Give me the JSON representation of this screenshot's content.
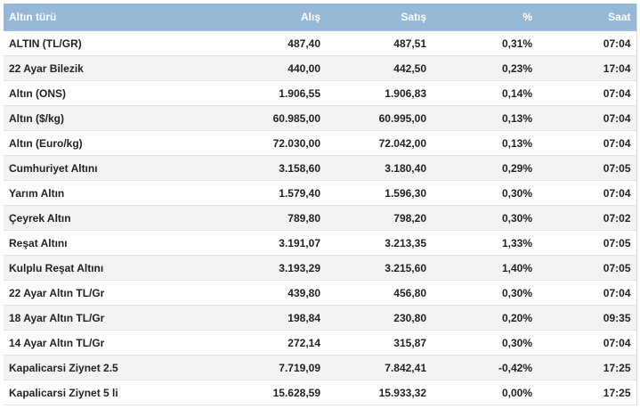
{
  "table": {
    "headers": [
      "Altın türü",
      "Alış",
      "Satış",
      "%",
      "Saat"
    ],
    "rows": [
      [
        "ALTIN (TL/GR)",
        "487,40",
        "487,51",
        "0,31%",
        "07:04"
      ],
      [
        "22 Ayar Bilezik",
        "440,00",
        "442,50",
        "0,23%",
        "17:04"
      ],
      [
        "Altın (ONS)",
        "1.906,55",
        "1.906,83",
        "0,14%",
        "07:04"
      ],
      [
        "Altın ($/kg)",
        "60.985,00",
        "60.995,00",
        "0,13%",
        "07:04"
      ],
      [
        "Altın (Euro/kg)",
        "72.030,00",
        "72.042,00",
        "0,13%",
        "07:04"
      ],
      [
        "Cumhuriyet Altını",
        "3.158,60",
        "3.180,40",
        "0,29%",
        "07:05"
      ],
      [
        "Yarım Altın",
        "1.579,40",
        "1.596,30",
        "0,30%",
        "07:04"
      ],
      [
        "Çeyrek Altın",
        "789,80",
        "798,20",
        "0,30%",
        "07:02"
      ],
      [
        "Reşat Altını",
        "3.191,07",
        "3.213,35",
        "1,33%",
        "07:05"
      ],
      [
        "Kulplu Reşat Altını",
        "3.193,29",
        "3.215,60",
        "1,40%",
        "07:05"
      ],
      [
        "22 Ayar Altın TL/Gr",
        "439,80",
        "456,80",
        "0,30%",
        "07:04"
      ],
      [
        "18 Ayar Altın TL/Gr",
        "198,84",
        "230,80",
        "0,20%",
        "09:35"
      ],
      [
        "14 Ayar Altın TL/Gr",
        "272,14",
        "315,87",
        "0,30%",
        "07:04"
      ],
      [
        "Kapalicarsi Ziynet 2.5",
        "7.719,09",
        "7.842,41",
        "-0,42%",
        "17:25"
      ],
      [
        "Kapalicarsi Ziynet 5 li",
        "15.628,59",
        "15.933,32",
        "0,00%",
        "17:25"
      ]
    ]
  },
  "colors": {
    "header_bg": "#94b8d6",
    "header_text": "#ffffff",
    "row_alt_bg": "#f2f2f2"
  }
}
